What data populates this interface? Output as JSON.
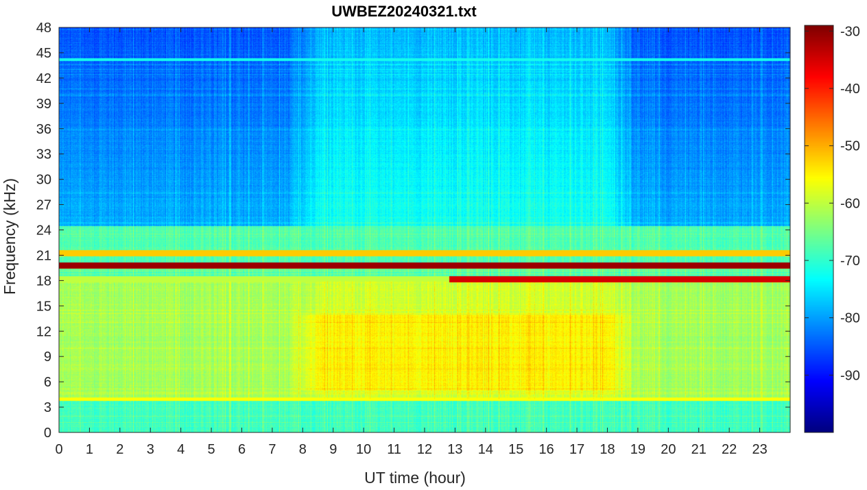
{
  "chart_data": {
    "type": "heatmap",
    "title": "UWBEZ20240321.txt",
    "xlabel": "UT time (hour)",
    "ylabel": "Frequency (kHz)",
    "xlim": [
      0,
      24
    ],
    "ylim": [
      0,
      48
    ],
    "x_ticks": [
      0,
      1,
      2,
      3,
      4,
      5,
      6,
      7,
      8,
      9,
      10,
      11,
      12,
      13,
      14,
      15,
      16,
      17,
      18,
      19,
      20,
      21,
      22,
      23
    ],
    "y_ticks": [
      0,
      3,
      6,
      9,
      12,
      15,
      18,
      21,
      24,
      27,
      30,
      33,
      36,
      39,
      42,
      45,
      48
    ],
    "colorbar": {
      "colormap": "jet",
      "range": [
        -100,
        -29
      ],
      "ticks": [
        -90,
        -80,
        -70,
        -60,
        -50,
        -40,
        -30
      ],
      "placement": "right"
    },
    "features": {
      "strong_lines_khz": [
        19.8,
        18.2,
        21.3
      ],
      "broadband_activity_hours": [
        7.5,
        19.0
      ],
      "broadband_activity_khz": [
        4,
        14
      ],
      "cutoff_line_khz": 4.0
    },
    "grid": false
  }
}
